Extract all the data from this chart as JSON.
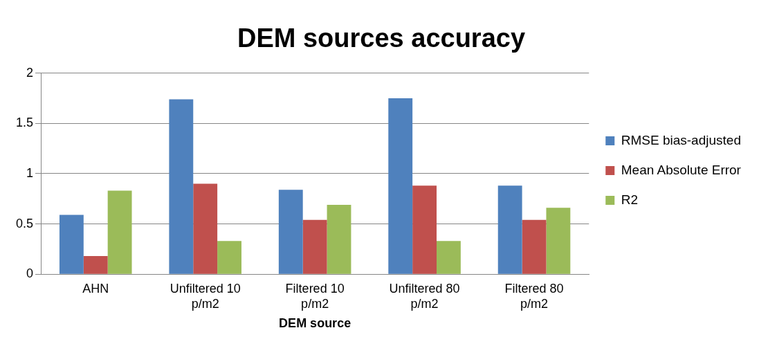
{
  "chart_data": {
    "type": "bar",
    "title": "DEM sources accuracy",
    "xlabel": "DEM source",
    "categories": [
      "AHN",
      "Unfiltered 10 p/m2",
      "Filtered 10 p/m2",
      "Unfiltered 80 p/m2",
      "Filtered 80 p/m2"
    ],
    "series": [
      {
        "name": "RMSE bias-adjusted",
        "color": "#4f81bd",
        "values": [
          0.59,
          1.74,
          0.84,
          1.75,
          0.88
        ]
      },
      {
        "name": "Mean Absolute Error",
        "color": "#c0504d",
        "values": [
          0.18,
          0.9,
          0.54,
          0.88,
          0.54
        ]
      },
      {
        "name": "R2",
        "color": "#9bbb59",
        "values": [
          0.83,
          0.33,
          0.69,
          0.33,
          0.66
        ]
      }
    ],
    "ylim": [
      0,
      2
    ],
    "yticks": [
      0,
      0.5,
      1,
      1.5,
      2
    ],
    "grid": "y",
    "legend": "right"
  }
}
